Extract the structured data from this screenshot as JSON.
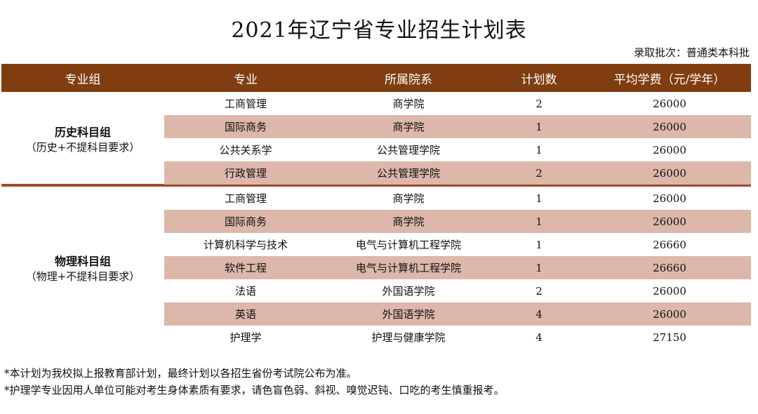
{
  "title": "2021年辽宁省专业招生计划表",
  "batch": "录取批次：普通类本科批",
  "headers": [
    "专业组",
    "专业",
    "所属院系",
    "计划数",
    "平均学费（元/学年）"
  ],
  "groups": [
    {
      "name": "历史科目组",
      "sub": "（历史+不提科目要求）",
      "rows": [
        {
          "major": "工商管理",
          "dept": "商学院",
          "plan": "2",
          "fee": "26000"
        },
        {
          "major": "国际商务",
          "dept": "商学院",
          "plan": "1",
          "fee": "26000"
        },
        {
          "major": "公共关系学",
          "dept": "公共管理学院",
          "plan": "1",
          "fee": "26000"
        },
        {
          "major": "行政管理",
          "dept": "公共管理学院",
          "plan": "2",
          "fee": "26000"
        }
      ]
    },
    {
      "name": "物理科目组",
      "sub": "（物理+不提科目要求）",
      "rows": [
        {
          "major": "工商管理",
          "dept": "商学院",
          "plan": "1",
          "fee": "26000"
        },
        {
          "major": "国际商务",
          "dept": "商学院",
          "plan": "1",
          "fee": "26000"
        },
        {
          "major": "计算机科学与技术",
          "dept": "电气与计算机工程学院",
          "plan": "1",
          "fee": "26660"
        },
        {
          "major": "软件工程",
          "dept": "电气与计算机工程学院",
          "plan": "1",
          "fee": "26660"
        },
        {
          "major": "法语",
          "dept": "外国语学院",
          "plan": "2",
          "fee": "26000"
        },
        {
          "major": "英语",
          "dept": "外国语学院",
          "plan": "4",
          "fee": "26000"
        },
        {
          "major": "护理学",
          "dept": "护理与健康学院",
          "plan": "4",
          "fee": "27150"
        }
      ]
    }
  ],
  "notes": [
    "*本计划为我校拟上报教育部计划，最终计划以各招生省份考试院公布为准。",
    "*护理学专业因用人单位可能对考生身体素质有要求，请色盲色弱、斜视、嗅觉迟钝、口吃的考生慎重报考。"
  ],
  "colors": {
    "header_bg": "#7f3d10",
    "row_shade": "#dcb7aa",
    "separator": "#a04a2c"
  }
}
